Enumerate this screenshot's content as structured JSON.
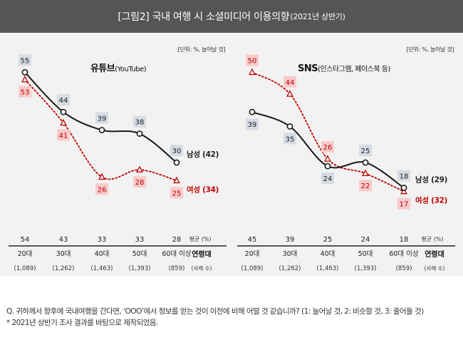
{
  "header": {
    "title_main": "[그림2] 국내 여행 시 소셜미디어 이용의향",
    "title_sub": "(2021년 상반기)"
  },
  "unit_label": "[단위: %, 늘어날 것]",
  "avg_label": "평균 (%)",
  "age_group_label": "연령대",
  "sample_label": "(사례 수)",
  "colors": {
    "male": "#1a1a1a",
    "female": "#c00000",
    "male_box": "#d6dce4",
    "female_box": "#f8cbcb",
    "header_bg": "#555555",
    "panel_bg": "#f2f2f2"
  },
  "chart_data": [
    {
      "type": "line",
      "title": "유튜브",
      "title_sub": "(YouTube)",
      "categories": [
        "20대",
        "30대",
        "40대",
        "50대",
        "60대 이상"
      ],
      "samples": [
        "(1,089)",
        "(1,262)",
        "(1,463)",
        "(1,393)",
        "(859)"
      ],
      "averages": [
        54,
        43,
        33,
        33,
        28
      ],
      "series": [
        {
          "name": "남성",
          "end_label": "남성 (42)",
          "values": [
            55,
            44,
            39,
            38,
            30
          ]
        },
        {
          "name": "여성",
          "end_label": "여성 (34)",
          "values": [
            53,
            41,
            26,
            28,
            25
          ]
        }
      ],
      "ylim": [
        15,
        62
      ]
    },
    {
      "type": "line",
      "title": "SNS",
      "title_sub": "(인스타그램, 페이스북 등)",
      "categories": [
        "20대",
        "30대",
        "40대",
        "50대",
        "60대 이상"
      ],
      "samples": [
        "(1,089)",
        "(1,262)",
        "(1,463)",
        "(1,393)",
        "(859)"
      ],
      "averages": [
        45,
        39,
        25,
        24,
        18
      ],
      "series": [
        {
          "name": "남성",
          "end_label": "남성 (29)",
          "values": [
            39,
            35,
            24,
            25,
            18
          ]
        },
        {
          "name": "여성",
          "end_label": "여성 (32)",
          "values": [
            50,
            44,
            26,
            22,
            17
          ]
        }
      ],
      "ylim": [
        10,
        57
      ]
    }
  ],
  "footer": {
    "question": "Q. 귀하께서 향후에 국내여행을 간다면, ‘OOO’에서 정보를 얻는 것이 이전에 비해 어떨 것 같습니까? (1: 늘어날 것, 2: 비슷할 것, 3: 줄어들 것)",
    "note": "* 2021년 상반기 조사 결과를 바탕으로 제작되었음."
  }
}
